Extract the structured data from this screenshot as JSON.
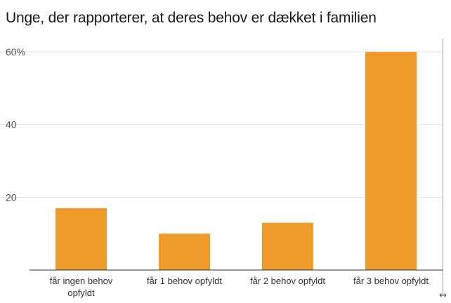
{
  "chart_data": {
    "type": "bar",
    "title": "Unge, der rapporterer, at deres behov er dækket i familien",
    "categories": [
      [
        "får ingen behov",
        "opfyldt"
      ],
      [
        "får 1 behov opfyldt"
      ],
      [
        "får 2 behov opfyldt"
      ],
      [
        "får 3 behov opfyldt"
      ]
    ],
    "values": [
      17,
      10,
      13,
      60
    ],
    "ylim": [
      0,
      60
    ],
    "yticks": [
      {
        "value": 20,
        "label": "20"
      },
      {
        "value": 40,
        "label": "40"
      },
      {
        "value": 60,
        "label": "60%"
      }
    ],
    "grid": true,
    "bar_color": "#ef9a2a"
  },
  "icons": {
    "expand": "↔"
  }
}
